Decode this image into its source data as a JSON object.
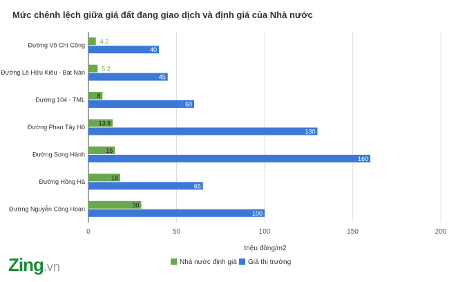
{
  "chart_data": {
    "type": "bar",
    "orientation": "horizontal",
    "title": "Mức chênh lệch giữa giá đất đang giao dịch và định giá của Nhà nước",
    "xlabel": "triệu đồng/m2",
    "ylabel": "",
    "xlim": [
      0,
      200
    ],
    "xticks": [
      0,
      50,
      100,
      150,
      200
    ],
    "grid": true,
    "legend_position": "bottom",
    "categories": [
      "Đường Võ Chí Công",
      "Đường Lê Hữu Kiều - Bát Nàn",
      "Đường 104 - TML",
      "Đường Phan Tây Hồ",
      "Đường Song Hành",
      "Đường Hồng Hà",
      "Đường Nguyễn Công Hoan"
    ],
    "series": [
      {
        "name": "Nhà nước định giá",
        "color": "#6aa84f",
        "values": [
          4.2,
          5.2,
          8,
          13.8,
          15,
          18,
          30
        ],
        "labels": [
          "4.2",
          "5.2",
          "8",
          "13.8",
          "15",
          "18",
          "30"
        ]
      },
      {
        "name": "Giá thị trường",
        "color": "#3c78d8",
        "values": [
          40,
          45,
          60,
          130,
          160,
          65,
          100
        ],
        "labels": [
          "40",
          "45",
          "60",
          "130",
          "160",
          "65",
          "100"
        ]
      }
    ]
  },
  "brand": {
    "main": "Zing",
    "suffix": ".vn"
  }
}
